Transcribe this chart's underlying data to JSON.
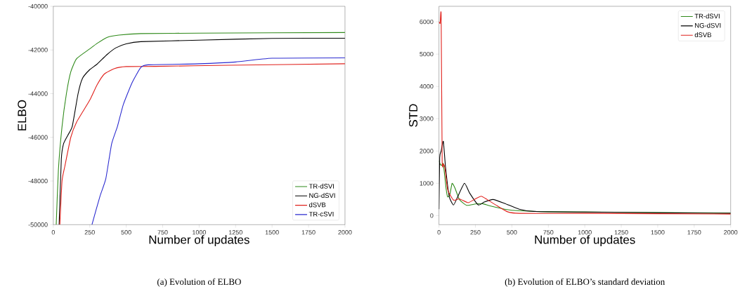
{
  "chart_data": [
    {
      "type": "line",
      "xlabel": "Number of updates",
      "ylabel": "ELBO",
      "xlim": [
        0,
        2000
      ],
      "ylim": [
        -50000,
        -40000
      ],
      "xticks": [
        0,
        250,
        500,
        750,
        1000,
        1250,
        1500,
        1750,
        2000
      ],
      "yticks": [
        -50000,
        -48000,
        -46000,
        -44000,
        -42000,
        -40000
      ],
      "legend": "bottom right",
      "annotations": [
        "(a) Evolution of ELBO"
      ],
      "series": [
        {
          "name": "TR-dSVI",
          "color": "#2f8a1a",
          "x": [
            20,
            35,
            60,
            90,
            120,
            160,
            250,
            300,
            370,
            450,
            600,
            1000,
            2000
          ],
          "values": [
            -50000,
            -47500,
            -45500,
            -44000,
            -43000,
            -42400,
            -41950,
            -41700,
            -41420,
            -41320,
            -41250,
            -41230,
            -41200
          ]
        },
        {
          "name": "NG-dSVI",
          "color": "#000000",
          "x": [
            40,
            55,
            70,
            100,
            130,
            170,
            200,
            250,
            300,
            370,
            430,
            500,
            600,
            1000,
            1500,
            2000
          ],
          "values": [
            -50000,
            -47000,
            -46300,
            -45900,
            -45500,
            -44000,
            -43300,
            -42900,
            -42650,
            -42200,
            -41900,
            -41720,
            -41620,
            -41550,
            -41470,
            -41460
          ]
        },
        {
          "name": "dSVB",
          "color": "#e0201b",
          "x": [
            45,
            60,
            80,
            120,
            160,
            250,
            300,
            350,
            420,
            500,
            700,
            1200,
            2000
          ],
          "values": [
            -50000,
            -48000,
            -47300,
            -46000,
            -45300,
            -44300,
            -43600,
            -43100,
            -42850,
            -42760,
            -42750,
            -42700,
            -42630
          ]
        },
        {
          "name": "TR-cSVI",
          "color": "#2b2bd0",
          "x": [
            265,
            320,
            360,
            400,
            440,
            480,
            540,
            600,
            650,
            1000,
            1250,
            1500,
            2000
          ],
          "values": [
            -50000,
            -48700,
            -47900,
            -46300,
            -45500,
            -44500,
            -43500,
            -42800,
            -42680,
            -42630,
            -42550,
            -42380,
            -42360
          ]
        }
      ]
    },
    {
      "type": "line",
      "xlabel": "Number of updates",
      "ylabel": "STD",
      "xlim": [
        0,
        2000
      ],
      "ylim": [
        -280,
        6480
      ],
      "xticks": [
        0,
        250,
        500,
        750,
        1000,
        1250,
        1500,
        1750,
        2000
      ],
      "yticks": [
        0,
        1000,
        2000,
        3000,
        4000,
        5000,
        6000
      ],
      "legend": "top right",
      "annotations": [
        "(b) Evolution of ELBO’s standard deviation"
      ],
      "series": [
        {
          "name": "TR-dSVI",
          "color": "#2f8a1a",
          "x": [
            0,
            10,
            20,
            30,
            50,
            60,
            75,
            90,
            110,
            140,
            190,
            250,
            300,
            350,
            450,
            550,
            750,
            2000
          ],
          "values": [
            1700,
            1580,
            1560,
            1600,
            800,
            580,
            650,
            1000,
            850,
            500,
            320,
            360,
            370,
            300,
            200,
            150,
            120,
            80
          ]
        },
        {
          "name": "NG-dSVI",
          "color": "#000000",
          "x": [
            0,
            5,
            15,
            30,
            45,
            70,
            100,
            130,
            175,
            210,
            270,
            310,
            370,
            450,
            550,
            650,
            1000,
            2000
          ],
          "values": [
            200,
            1800,
            2000,
            2300,
            1500,
            600,
            330,
            600,
            1000,
            700,
            330,
            420,
            500,
            380,
            200,
            130,
            110,
            70
          ]
        },
        {
          "name": "dSVB",
          "color": "#e0201b",
          "x": [
            0,
            8,
            15,
            22,
            30,
            40,
            60,
            100,
            140,
            200,
            250,
            290,
            330,
            400,
            470,
            550,
            1000,
            2000
          ],
          "values": [
            6000,
            5950,
            6200,
            1700,
            1600,
            1500,
            800,
            480,
            520,
            400,
            520,
            600,
            500,
            300,
            120,
            70,
            70,
            50
          ]
        }
      ]
    }
  ]
}
